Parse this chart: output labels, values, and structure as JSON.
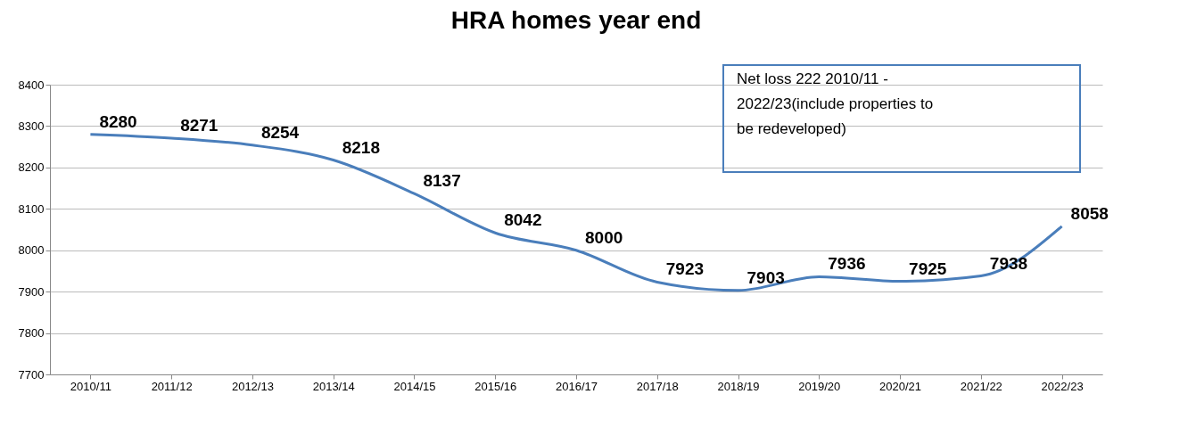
{
  "chart_data": {
    "type": "line",
    "title": "HRA homes year end",
    "categories": [
      "2010/11",
      "2011/12",
      "2012/13",
      "2013/14",
      "2014/15",
      "2015/16",
      "2016/17",
      "2017/18",
      "2018/19",
      "2019/20",
      "2020/21",
      "2021/22",
      "2022/23"
    ],
    "series": [
      {
        "color": "#4a7ebb",
        "values": [
          8280,
          8271,
          8254,
          8218,
          8137,
          8042,
          8000,
          7923,
          7903,
          7936,
          7925,
          7938,
          8058
        ]
      }
    ],
    "ylim": [
      7700,
      8400
    ],
    "yticks": [
      7700,
      7800,
      7900,
      8000,
      8100,
      8200,
      8300,
      8400
    ],
    "grid": "y",
    "data_labels": true,
    "marker": "none",
    "line_style": "solid",
    "annotations": [
      "Net loss 222 2010/11 - 2022/23(include properties to be redeveloped)"
    ]
  }
}
